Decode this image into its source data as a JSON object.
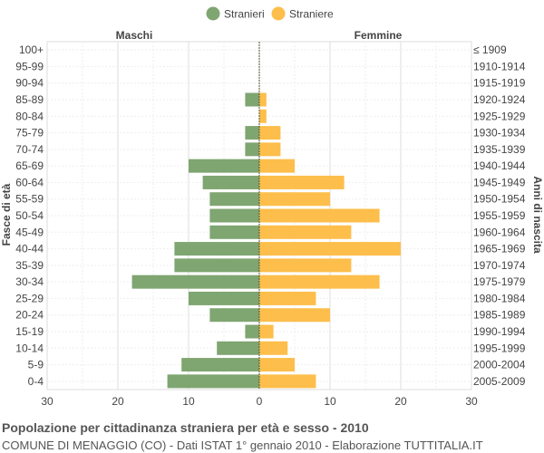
{
  "title": "Popolazione per cittadinanza straniera per età e sesso - 2010",
  "subtitle": "COMUNE DI MENAGGIO (CO) - Dati ISTAT 1° gennaio 2010 - Elaborazione TUTTITALIA.IT",
  "chart_data": {
    "type": "bar",
    "orientation": "horizontal-pyramid",
    "left_header": "Maschi",
    "right_header": "Femmine",
    "ylabel_left": "Fasce di età",
    "ylabel_right": "Anni di nascita",
    "xlim": [
      -30,
      30
    ],
    "x_ticks": [
      -30,
      -20,
      -10,
      0,
      10,
      20,
      30
    ],
    "x_tick_labels": [
      "30",
      "20",
      "10",
      "0",
      "10",
      "20",
      "30"
    ],
    "grid": true,
    "legend_position": "top-center",
    "categories": [
      "100+",
      "95-99",
      "90-94",
      "85-89",
      "80-84",
      "75-79",
      "70-74",
      "65-69",
      "60-64",
      "55-59",
      "50-54",
      "45-49",
      "40-44",
      "35-39",
      "30-34",
      "25-29",
      "20-24",
      "15-19",
      "10-14",
      "5-9",
      "0-4"
    ],
    "birth_years": [
      "≤ 1909",
      "1910-1914",
      "1915-1919",
      "1920-1924",
      "1925-1929",
      "1930-1934",
      "1935-1939",
      "1940-1944",
      "1945-1949",
      "1950-1954",
      "1955-1959",
      "1960-1964",
      "1965-1969",
      "1970-1974",
      "1975-1979",
      "1980-1984",
      "1985-1989",
      "1990-1994",
      "1995-1999",
      "2000-2004",
      "2005-2009"
    ],
    "series": [
      {
        "name": "Stranieri",
        "color": "#7fa571",
        "values": [
          0,
          0,
          0,
          2,
          0,
          2,
          2,
          10,
          8,
          7,
          7,
          7,
          12,
          12,
          18,
          10,
          7,
          2,
          6,
          11,
          13
        ]
      },
      {
        "name": "Straniere",
        "color": "#fdbe4b",
        "values": [
          0,
          0,
          0,
          1,
          1,
          3,
          3,
          5,
          12,
          10,
          17,
          13,
          20,
          13,
          17,
          8,
          10,
          2,
          4,
          5,
          8
        ]
      }
    ]
  }
}
